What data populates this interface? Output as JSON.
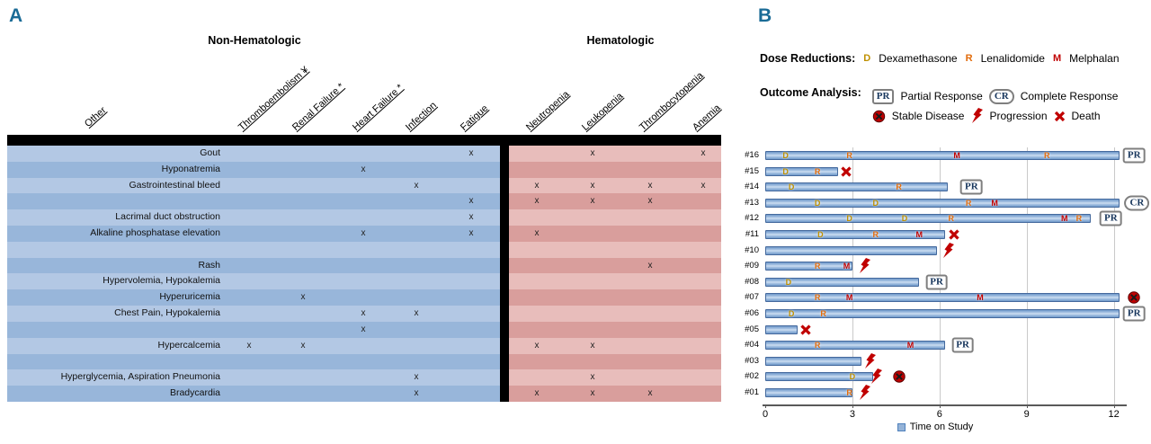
{
  "figure": {
    "panel_a_label": "A",
    "panel_b_label": "B"
  },
  "colors": {
    "panel_letter": "#1a6b96",
    "dex": "#bf9000",
    "len": "#e26b0a",
    "mel": "#c00000",
    "icon_red": "#c00000",
    "bar_fill": "#95b3d7",
    "bar_border": "#4f81bd",
    "row_blue_light": "#b3c8e4",
    "row_blue_dark": "#98b6da",
    "row_red_light": "#e8bdbb",
    "row_red_dark": "#d99e9c",
    "response_text": "#17365d"
  },
  "chart_data": [
    {
      "type": "table",
      "panel": "A",
      "group_headers": {
        "non_hematologic": "Non-Hematologic",
        "hematologic": "Hematologic"
      },
      "other_header": "Other",
      "columns_non_hematologic": [
        {
          "id": "thromboembolism",
          "label": "Thromboembolism ¥"
        },
        {
          "id": "renal",
          "label": "Renal Failure *"
        },
        {
          "id": "heart",
          "label": "Heart Failure *"
        },
        {
          "id": "infection",
          "label": "Infection"
        },
        {
          "id": "fatigue",
          "label": "Fatigue"
        }
      ],
      "columns_hematologic": [
        {
          "id": "neutropenia",
          "label": "Neutropenia"
        },
        {
          "id": "leukopenia",
          "label": "Leukopenia"
        },
        {
          "id": "thrombocytopenia",
          "label": "Thrombocytopenia"
        },
        {
          "id": "anemia",
          "label": "Anemia"
        }
      ],
      "mark": "x",
      "rows": [
        {
          "other": "Gout",
          "marks": [
            "fatigue",
            "leukopenia",
            "anemia"
          ]
        },
        {
          "other": "Hyponatremia",
          "marks": [
            "heart"
          ]
        },
        {
          "other": "Gastrointestinal bleed",
          "marks": [
            "infection",
            "neutropenia",
            "leukopenia",
            "thrombocytopenia",
            "anemia"
          ]
        },
        {
          "other": "",
          "marks": [
            "fatigue",
            "neutropenia",
            "leukopenia",
            "thrombocytopenia"
          ]
        },
        {
          "other": "Lacrimal duct obstruction",
          "marks": [
            "fatigue"
          ]
        },
        {
          "other": "Alkaline phosphatase elevation",
          "marks": [
            "heart",
            "fatigue",
            "neutropenia"
          ]
        },
        {
          "other": "",
          "marks": []
        },
        {
          "other": "Rash",
          "marks": [
            "thrombocytopenia"
          ]
        },
        {
          "other": "Hypervolemia, Hypokalemia",
          "marks": []
        },
        {
          "other": "Hyperuricemia",
          "marks": [
            "renal"
          ]
        },
        {
          "other": "Chest Pain, Hypokalemia",
          "marks": [
            "heart",
            "infection"
          ]
        },
        {
          "other": "",
          "marks": [
            "heart"
          ]
        },
        {
          "other": "Hypercalcemia",
          "marks": [
            "thromboembolism",
            "renal",
            "neutropenia",
            "leukopenia"
          ]
        },
        {
          "other": "",
          "marks": []
        },
        {
          "other": "Hyperglycemia, Aspiration Pneumonia",
          "marks": [
            "infection",
            "leukopenia"
          ]
        },
        {
          "other": "Bradycardia",
          "marks": [
            "infection",
            "neutropenia",
            "leukopenia",
            "thrombocytopenia"
          ]
        }
      ]
    },
    {
      "type": "bar",
      "subtype": "swimmer-timeline",
      "panel": "B",
      "xlabel": "Time on Study",
      "x_ticks": [
        0,
        3,
        6,
        9,
        12
      ],
      "xlim": [
        0,
        12.3
      ],
      "dose_legend": {
        "label": "Dose Reductions:",
        "items": [
          {
            "letter": "D",
            "name": "Dexamethasone"
          },
          {
            "letter": "R",
            "name": "Lenalidomide"
          },
          {
            "letter": "M",
            "name": "Melphalan"
          }
        ]
      },
      "outcome_legend": {
        "label": "Outcome Analysis:",
        "row1": [
          {
            "icon": "PR",
            "name": "Partial Response"
          },
          {
            "icon": "CR",
            "name": "Complete Response"
          }
        ],
        "row2": [
          {
            "icon": "stable",
            "name": "Stable Disease"
          },
          {
            "icon": "progression",
            "name": "Progression"
          },
          {
            "icon": "death",
            "name": "Death"
          }
        ]
      },
      "patients": [
        {
          "id": "#16",
          "duration": 12.2,
          "dose": [
            {
              "t": 0.7,
              "drug": "D"
            },
            {
              "t": 2.9,
              "drug": "R"
            },
            {
              "t": 6.6,
              "drug": "M"
            },
            {
              "t": 9.7,
              "drug": "R"
            }
          ],
          "outcomes": [
            {
              "type": "PR",
              "t": 12.7
            }
          ]
        },
        {
          "id": "#15",
          "duration": 2.5,
          "dose": [
            {
              "t": 0.7,
              "drug": "D"
            },
            {
              "t": 1.8,
              "drug": "R"
            }
          ],
          "outcomes": [
            {
              "type": "death",
              "t": 2.8
            }
          ]
        },
        {
          "id": "#14",
          "duration": 6.3,
          "dose": [
            {
              "t": 0.9,
              "drug": "D"
            },
            {
              "t": 4.6,
              "drug": "R"
            }
          ],
          "outcomes": [
            {
              "type": "PR",
              "t": 7.1
            }
          ]
        },
        {
          "id": "#13",
          "duration": 12.2,
          "dose": [
            {
              "t": 1.8,
              "drug": "D"
            },
            {
              "t": 3.8,
              "drug": "D"
            },
            {
              "t": 7.0,
              "drug": "R"
            },
            {
              "t": 7.9,
              "drug": "M"
            }
          ],
          "outcomes": [
            {
              "type": "CR",
              "t": 12.8
            }
          ]
        },
        {
          "id": "#12",
          "duration": 11.2,
          "dose": [
            {
              "t": 2.9,
              "drug": "D"
            },
            {
              "t": 4.8,
              "drug": "D"
            },
            {
              "t": 6.4,
              "drug": "R"
            },
            {
              "t": 10.3,
              "drug": "M"
            },
            {
              "t": 10.8,
              "drug": "R"
            }
          ],
          "outcomes": [
            {
              "type": "PR",
              "t": 11.9
            }
          ]
        },
        {
          "id": "#11",
          "duration": 6.2,
          "dose": [
            {
              "t": 1.9,
              "drug": "D"
            },
            {
              "t": 3.8,
              "drug": "R"
            },
            {
              "t": 5.3,
              "drug": "M"
            }
          ],
          "outcomes": [
            {
              "type": "death",
              "t": 6.5
            }
          ]
        },
        {
          "id": "#10",
          "duration": 5.9,
          "dose": [],
          "outcomes": [
            {
              "type": "progression",
              "t": 6.3
            }
          ]
        },
        {
          "id": "#09",
          "duration": 3.0,
          "dose": [
            {
              "t": 1.8,
              "drug": "R"
            },
            {
              "t": 2.8,
              "drug": "M"
            }
          ],
          "outcomes": [
            {
              "type": "progression",
              "t": 3.4
            }
          ]
        },
        {
          "id": "#08",
          "duration": 5.3,
          "dose": [
            {
              "t": 0.8,
              "drug": "D"
            }
          ],
          "outcomes": [
            {
              "type": "PR",
              "t": 5.9
            }
          ]
        },
        {
          "id": "#07",
          "duration": 12.2,
          "dose": [
            {
              "t": 1.8,
              "drug": "R"
            },
            {
              "t": 2.9,
              "drug": "M"
            },
            {
              "t": 7.4,
              "drug": "M"
            }
          ],
          "outcomes": [
            {
              "type": "stable",
              "t": 12.7
            }
          ]
        },
        {
          "id": "#06",
          "duration": 12.2,
          "dose": [
            {
              "t": 0.9,
              "drug": "D"
            },
            {
              "t": 2.0,
              "drug": "R"
            }
          ],
          "outcomes": [
            {
              "type": "PR",
              "t": 12.7
            }
          ]
        },
        {
          "id": "#05",
          "duration": 1.1,
          "dose": [],
          "outcomes": [
            {
              "type": "death",
              "t": 1.4
            }
          ]
        },
        {
          "id": "#04",
          "duration": 6.2,
          "dose": [
            {
              "t": 1.8,
              "drug": "R"
            },
            {
              "t": 5.0,
              "drug": "M"
            }
          ],
          "outcomes": [
            {
              "type": "PR",
              "t": 6.8
            }
          ]
        },
        {
          "id": "#03",
          "duration": 3.3,
          "dose": [],
          "outcomes": [
            {
              "type": "progression",
              "t": 3.6
            }
          ]
        },
        {
          "id": "#02",
          "duration": 3.7,
          "dose": [
            {
              "t": 3.0,
              "drug": "D"
            }
          ],
          "outcomes": [
            {
              "type": "progression",
              "t": 3.8
            },
            {
              "type": "stable",
              "t": 4.6
            }
          ]
        },
        {
          "id": "#01",
          "duration": 3.0,
          "dose": [
            {
              "t": 2.9,
              "drug": "R"
            }
          ],
          "outcomes": [
            {
              "type": "progression",
              "t": 3.4
            }
          ]
        }
      ]
    }
  ]
}
